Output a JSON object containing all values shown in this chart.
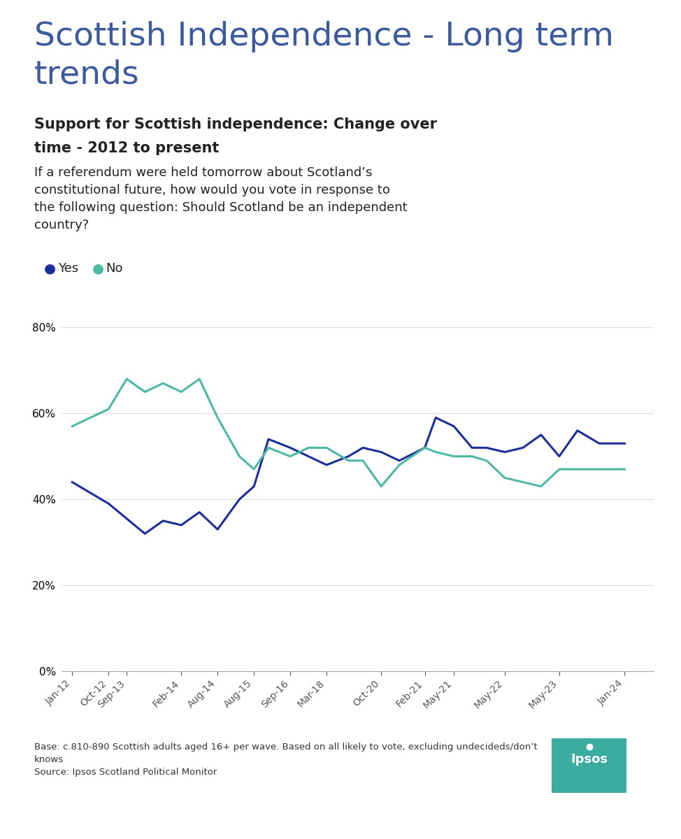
{
  "title_main": "Scottish Independence - Long term\ntrends",
  "title_main_color": "#3d5a9e",
  "subtitle_bold": "Support for Scottish independence: Change over\ntime - 2012 to present",
  "subtitle_body": "If a referendum were held tomorrow about Scotland’s\nconstitutional future, how would you vote in response to\nthe following question: Should Scotland be an independent\ncountry?",
  "legend_yes": "Yes",
  "legend_no": "No",
  "yes_color": "#1c2d9c",
  "no_color": "#4db8a4",
  "background_color": "#ffffff",
  "grid_color": "#dddddd",
  "footnote_line1": "Base: c.810-890 Scottish adults aged 16+ per wave. Based on all likely to vote, excluding undecideds/don’t",
  "footnote_line2": "knows",
  "footnote_line3": "Source: Ipsos Scotland Political Monitor",
  "ylim_min": 0,
  "ylim_max": 82,
  "yticks": [
    0,
    20,
    40,
    60,
    80
  ],
  "yes_x": [
    0,
    1,
    2,
    2.5,
    3,
    3.5,
    4,
    4.6,
    5,
    5.4,
    6,
    6.5,
    7,
    7.6,
    8,
    8.5,
    9.0,
    9.7,
    10,
    10.5,
    11,
    11.4,
    11.9,
    12.4,
    12.9,
    13.4,
    13.9,
    14.5,
    15.2
  ],
  "yes_y": [
    44,
    39,
    32,
    35,
    34,
    37,
    33,
    40,
    43,
    54,
    52,
    50,
    48,
    50,
    52,
    51,
    49,
    52,
    59,
    57,
    52,
    52,
    51,
    52,
    55,
    50,
    56,
    53,
    53
  ],
  "no_x": [
    0,
    1,
    1.5,
    2,
    2.5,
    3,
    3.5,
    4,
    4.6,
    5,
    5.4,
    6,
    6.5,
    7,
    7.6,
    8,
    8.5,
    9.0,
    9.7,
    10,
    10.5,
    11,
    11.4,
    11.9,
    12.4,
    12.9,
    13.4,
    13.9,
    15.2
  ],
  "no_y": [
    57,
    61,
    68,
    65,
    67,
    65,
    68,
    59,
    50,
    47,
    52,
    50,
    52,
    52,
    49,
    49,
    43,
    48,
    52,
    51,
    50,
    50,
    49,
    45,
    44,
    43,
    47,
    47,
    47
  ],
  "xtick_positions": [
    0,
    1,
    1.5,
    3,
    4,
    5,
    6,
    7,
    8.5,
    9.7,
    10.5,
    11.9,
    13.4,
    15.2
  ],
  "xtick_labels": [
    "Jan-12",
    "Oct-12",
    "Sep-13",
    "Feb-14",
    "Aug-14",
    "Aug-15",
    "Sep-16",
    "Mar-18",
    "Oct-20",
    "Feb-21",
    "May-21",
    "May-22",
    "May-23",
    "Jan-24"
  ]
}
